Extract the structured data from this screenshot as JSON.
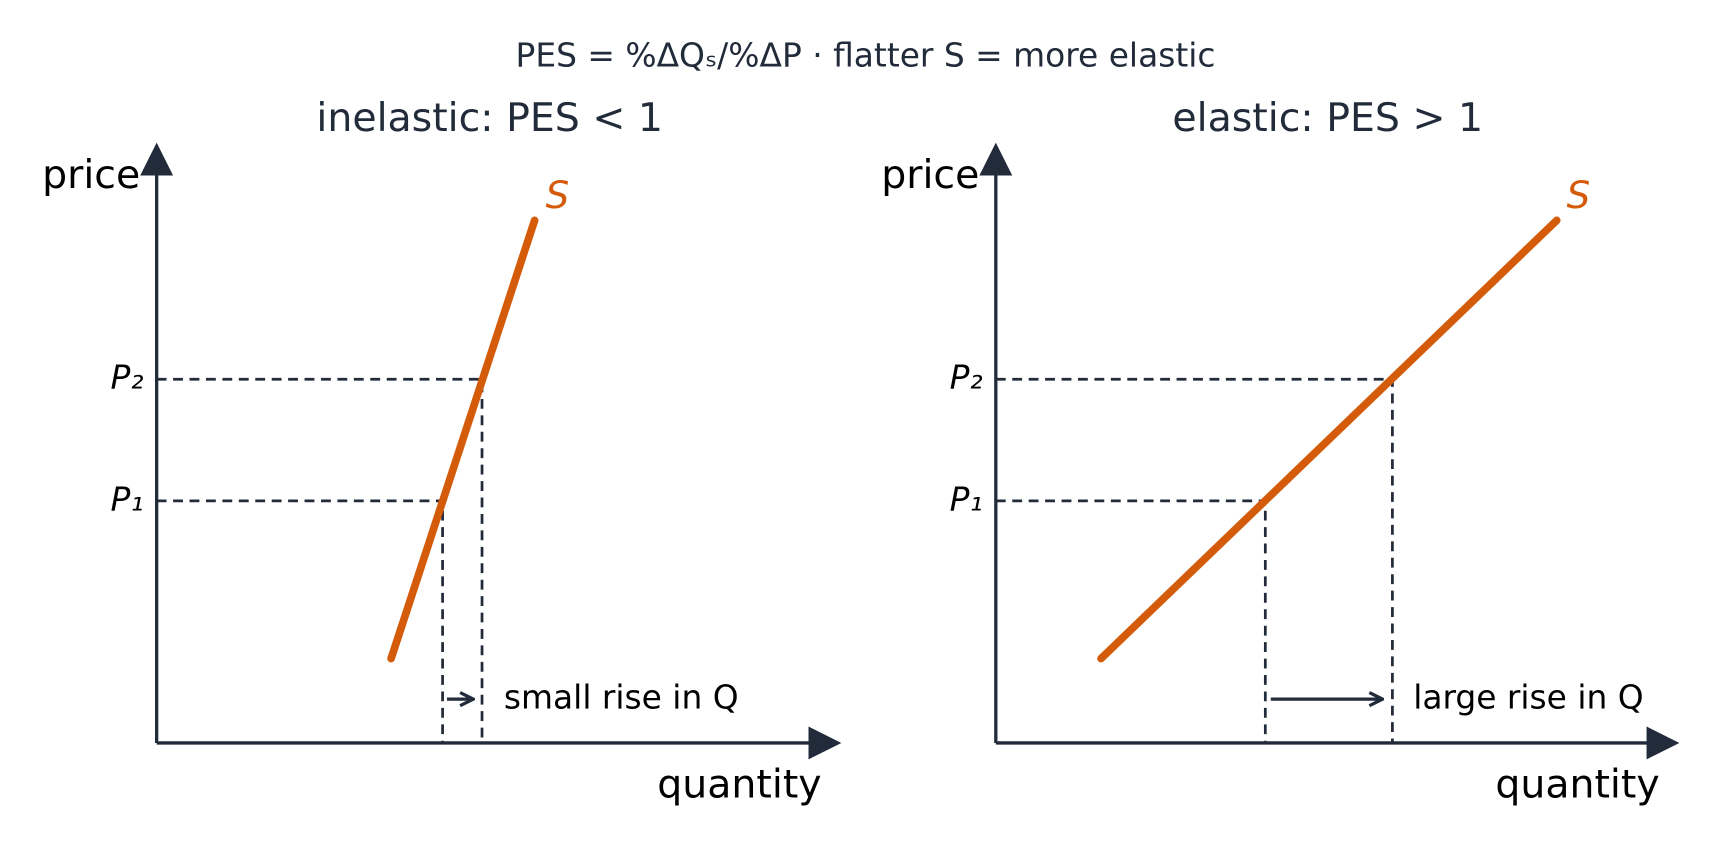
{
  "title": "PES = %ΔQₛ/%ΔP · flatter S = more elastic",
  "panels": [
    {
      "title": "inelastic: PES < 1",
      "y_label": "price",
      "x_label": "quantity",
      "curve_label": "S",
      "p_labels": [
        "P₁",
        "P₂"
      ],
      "annotation": "small rise in Q"
    },
    {
      "title": "elastic: PES > 1",
      "y_label": "price",
      "x_label": "quantity",
      "curve_label": "S",
      "p_labels": [
        "P₁",
        "P₂"
      ],
      "annotation": "large rise in Q"
    }
  ]
}
